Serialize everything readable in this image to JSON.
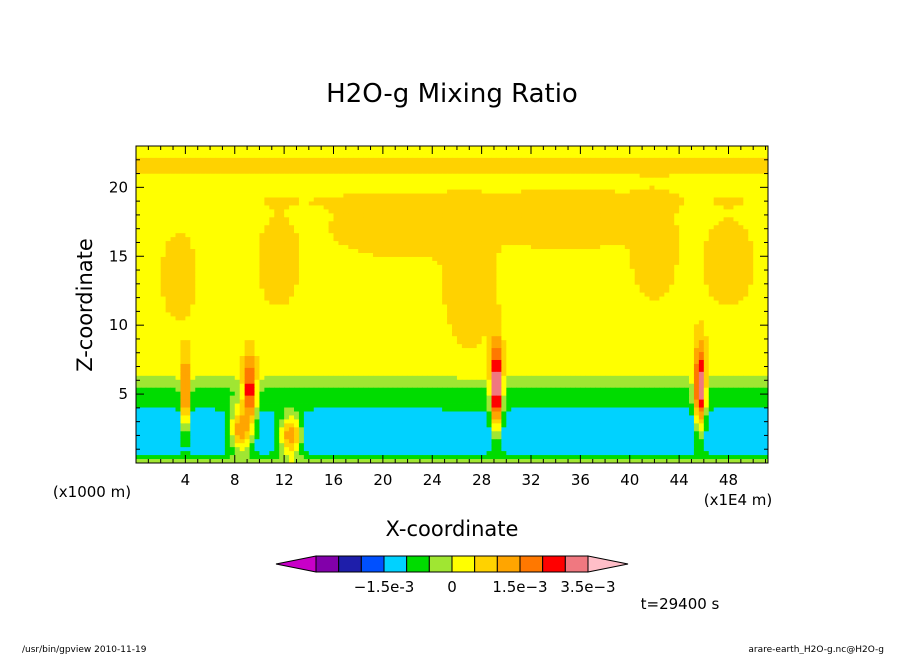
{
  "chart_data": {
    "type": "heatmap",
    "title": "H2O-g Mixing Ratio",
    "xlabel": "X-coordinate",
    "ylabel": "Z-coordinate",
    "x_unit": "(x1E4 m)",
    "z_unit": "(x1000 m)",
    "xlim": [
      0,
      51.2
    ],
    "ylim": [
      0,
      23
    ],
    "x_ticks": [
      4,
      8,
      12,
      16,
      20,
      24,
      28,
      32,
      36,
      40,
      44,
      48
    ],
    "y_ticks": [
      5,
      10,
      15,
      20
    ],
    "time_label": "t=29400 s",
    "colorbar": {
      "colors": [
        "#c800c8",
        "#8200aa",
        "#1e1eaa",
        "#0050ff",
        "#00d2ff",
        "#00dc00",
        "#a0e632",
        "#ffff00",
        "#ffd200",
        "#ffa500",
        "#ff7800",
        "#ff0000",
        "#f07880",
        "#ffbec8"
      ],
      "labels": [
        "-1.5e-3",
        "0",
        "1.5e-3",
        "3.5e-3"
      ],
      "levels": [
        -0.003,
        -0.0025,
        -0.002,
        -0.0015,
        -0.001,
        -0.0005,
        0,
        0.0005,
        0.001,
        0.0015,
        0.002,
        0.0025,
        0.0035
      ]
    },
    "background_anomaly": 0.0003,
    "features": [
      {
        "kind": "band",
        "zmin": 0.3,
        "zmax": 6.0,
        "value": -0.0007
      },
      {
        "kind": "band",
        "zmin": 0.5,
        "zmax": 3.8,
        "value": -0.0014
      },
      {
        "kind": "band",
        "zmin": 20.6,
        "zmax": 22.6,
        "value": 0.00055
      },
      {
        "kind": "band",
        "zmin": 18.5,
        "zmax": 19.6,
        "value": 0.00055
      },
      {
        "kind": "blob",
        "x": 3.5,
        "z": 13.5,
        "sx": 1.4,
        "sz": 3.0,
        "value": 0.0009
      },
      {
        "kind": "blob",
        "x": 11.5,
        "z": 14.5,
        "sx": 1.6,
        "sz": 3.0,
        "value": 0.0009
      },
      {
        "kind": "blob",
        "x": 22.0,
        "z": 17.0,
        "sx": 6.0,
        "sz": 2.0,
        "value": 0.0009
      },
      {
        "kind": "blob",
        "x": 27.0,
        "z": 13.0,
        "sx": 2.0,
        "sz": 4.5,
        "value": 0.0009
      },
      {
        "kind": "blob",
        "x": 35.0,
        "z": 17.5,
        "sx": 5.0,
        "sz": 2.0,
        "value": 0.0009
      },
      {
        "kind": "blob",
        "x": 42.0,
        "z": 15.5,
        "sx": 1.8,
        "sz": 3.5,
        "value": 0.0009
      },
      {
        "kind": "blob",
        "x": 48.0,
        "z": 14.5,
        "sx": 2.0,
        "sz": 3.0,
        "value": 0.0009
      },
      {
        "kind": "blob",
        "x": 12.5,
        "z": 2.0,
        "sx": 0.9,
        "sz": 1.6,
        "value": 0.0014
      },
      {
        "kind": "blob",
        "x": 8.5,
        "z": 2.5,
        "sx": 0.9,
        "sz": 1.8,
        "value": 0.0014
      },
      {
        "kind": "blob",
        "x": 22.0,
        "z": 2.2,
        "sx": 1.5,
        "sz": 0.6,
        "value": -0.001
      },
      {
        "kind": "blob",
        "x": 4.0,
        "z": 5.0,
        "sx": 0.35,
        "sz": 2.6,
        "value": 0.0022
      },
      {
        "kind": "blob",
        "x": 9.2,
        "z": 5.3,
        "sx": 0.55,
        "sz": 2.4,
        "value": 0.0024
      },
      {
        "kind": "blob",
        "x": 29.2,
        "z": 5.5,
        "sx": 0.45,
        "sz": 3.2,
        "value": 0.0033
      },
      {
        "kind": "blob",
        "x": 45.7,
        "z": 5.5,
        "sx": 0.45,
        "sz": 3.0,
        "value": 0.003
      }
    ]
  },
  "footer": {
    "left": "/usr/bin/gpview   2010-11-19",
    "right": "arare-earth_H2O-g.nc@H2O-g"
  }
}
